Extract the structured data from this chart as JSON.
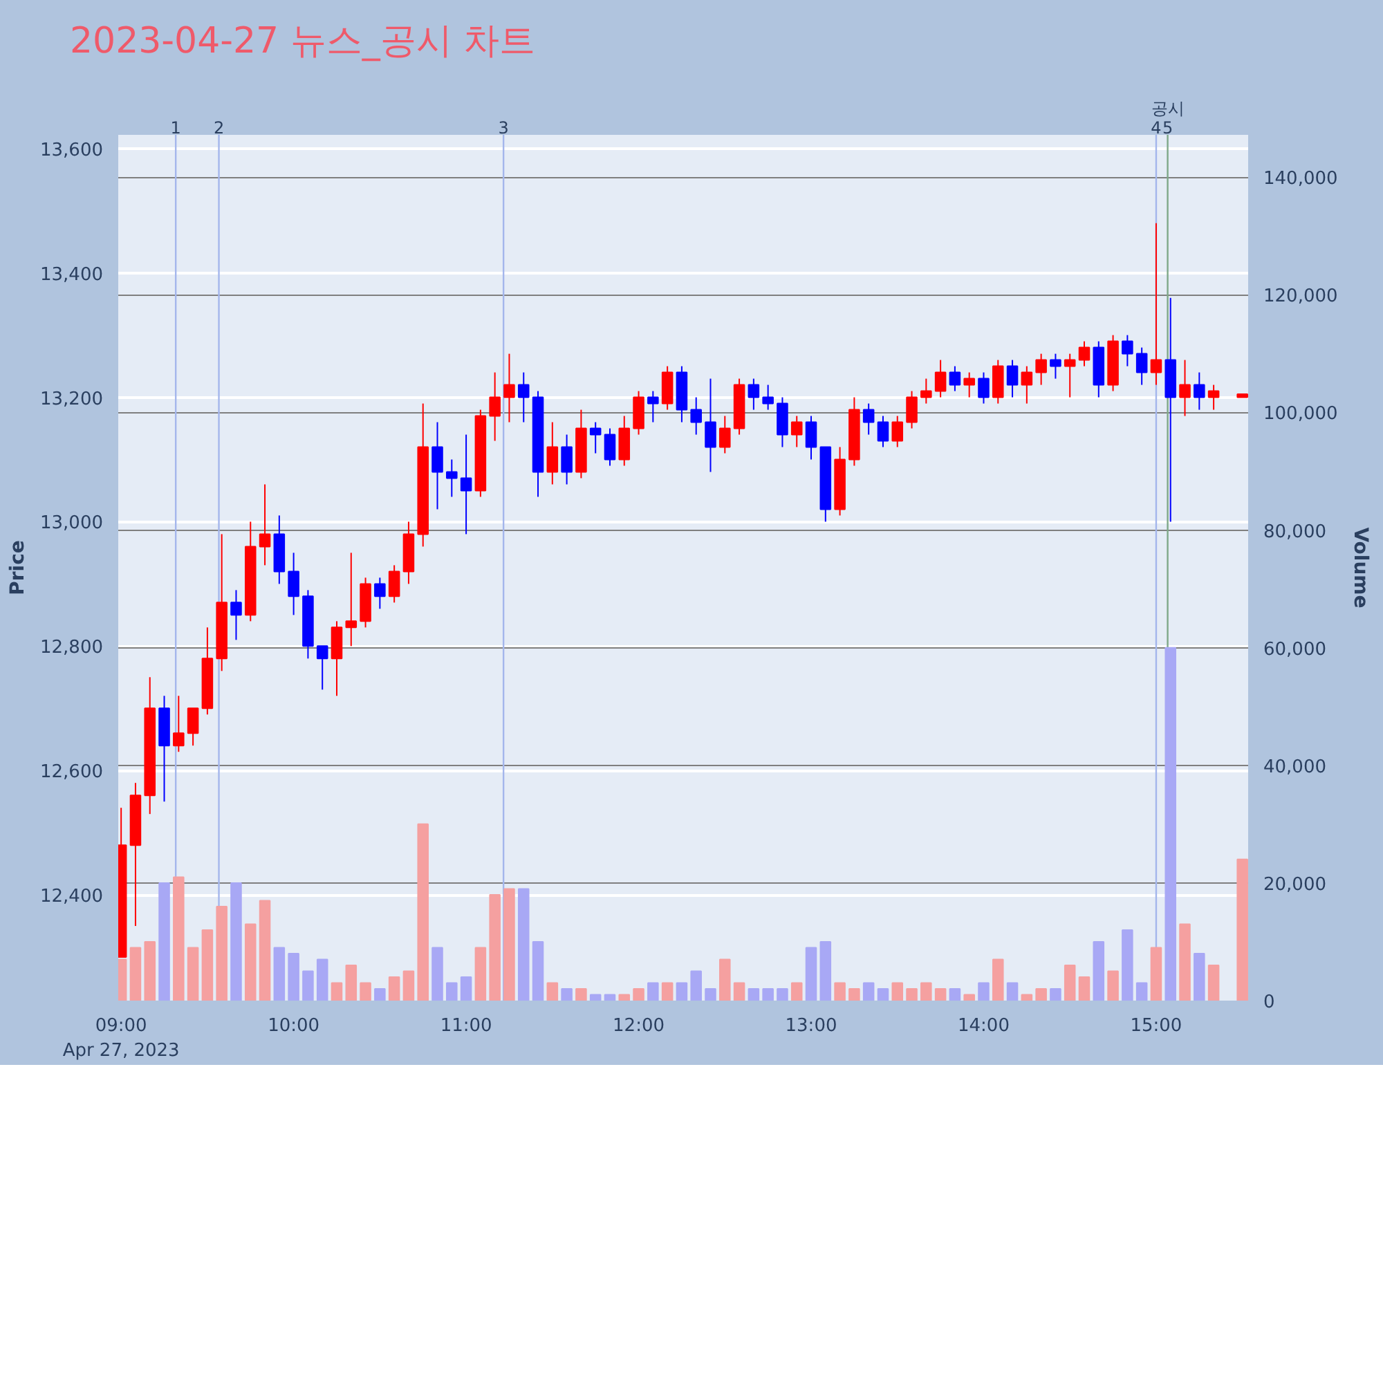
{
  "chart_data": {
    "type": "candlestick",
    "title": "2023-04-27 뉴스_공시 차트",
    "ylabel": "Price",
    "y2label": "Volume",
    "x": [
      "2023-04-27T09:00",
      "2023-04-27T09:05",
      "2023-04-27T09:10",
      "2023-04-27T09:15",
      "2023-04-27T09:20",
      "2023-04-27T09:25",
      "2023-04-27T09:30",
      "2023-04-27T09:35",
      "2023-04-27T09:40",
      "2023-04-27T09:45",
      "2023-04-27T09:50",
      "2023-04-27T09:55",
      "2023-04-27T10:00",
      "2023-04-27T10:05",
      "2023-04-27T10:10",
      "2023-04-27T10:15",
      "2023-04-27T10:20",
      "2023-04-27T10:25",
      "2023-04-27T10:30",
      "2023-04-27T10:35",
      "2023-04-27T10:40",
      "2023-04-27T10:45",
      "2023-04-27T10:50",
      "2023-04-27T10:55",
      "2023-04-27T11:00",
      "2023-04-27T11:05",
      "2023-04-27T11:10",
      "2023-04-27T11:15",
      "2023-04-27T11:20",
      "2023-04-27T11:25",
      "2023-04-27T11:30",
      "2023-04-27T11:35",
      "2023-04-27T11:40",
      "2023-04-27T11:45",
      "2023-04-27T11:50",
      "2023-04-27T11:55",
      "2023-04-27T12:00",
      "2023-04-27T12:05",
      "2023-04-27T12:10",
      "2023-04-27T12:15",
      "2023-04-27T12:20",
      "2023-04-27T12:25",
      "2023-04-27T12:30",
      "2023-04-27T12:35",
      "2023-04-27T12:40",
      "2023-04-27T12:45",
      "2023-04-27T12:50",
      "2023-04-27T12:55",
      "2023-04-27T13:00",
      "2023-04-27T13:05",
      "2023-04-27T13:10",
      "2023-04-27T13:15",
      "2023-04-27T13:20",
      "2023-04-27T13:25",
      "2023-04-27T13:30",
      "2023-04-27T13:35",
      "2023-04-27T13:40",
      "2023-04-27T13:45",
      "2023-04-27T13:50",
      "2023-04-27T13:55",
      "2023-04-27T14:00",
      "2023-04-27T14:05",
      "2023-04-27T14:10",
      "2023-04-27T14:15",
      "2023-04-27T14:20",
      "2023-04-27T14:25",
      "2023-04-27T14:30",
      "2023-04-27T14:35",
      "2023-04-27T14:40",
      "2023-04-27T14:45",
      "2023-04-27T14:50",
      "2023-04-27T14:55",
      "2023-04-27T15:00",
      "2023-04-27T15:05",
      "2023-04-27T15:10",
      "2023-04-27T15:15",
      "2023-04-27T15:20",
      "2023-04-27T15:30"
    ],
    "ohlc": [
      [
        12300,
        12540,
        12300,
        12480
      ],
      [
        12480,
        12580,
        12350,
        12560
      ],
      [
        12560,
        12750,
        12530,
        12700
      ],
      [
        12700,
        12720,
        12550,
        12640
      ],
      [
        12640,
        12720,
        12630,
        12660
      ],
      [
        12660,
        12700,
        12640,
        12700
      ],
      [
        12700,
        12830,
        12690,
        12780
      ],
      [
        12780,
        12980,
        12760,
        12870
      ],
      [
        12870,
        12890,
        12810,
        12850
      ],
      [
        12850,
        13000,
        12840,
        12960
      ],
      [
        12960,
        13060,
        12930,
        12980
      ],
      [
        12980,
        13010,
        12900,
        12920
      ],
      [
        12920,
        12950,
        12850,
        12880
      ],
      [
        12880,
        12890,
        12780,
        12800
      ],
      [
        12800,
        12800,
        12730,
        12780
      ],
      [
        12780,
        12840,
        12720,
        12830
      ],
      [
        12830,
        12950,
        12800,
        12840
      ],
      [
        12840,
        12910,
        12830,
        12900
      ],
      [
        12900,
        12910,
        12860,
        12880
      ],
      [
        12880,
        12930,
        12870,
        12920
      ],
      [
        12920,
        13000,
        12900,
        12980
      ],
      [
        12980,
        13190,
        12960,
        13120
      ],
      [
        13120,
        13160,
        13020,
        13080
      ],
      [
        13080,
        13100,
        13040,
        13070
      ],
      [
        13070,
        13140,
        12980,
        13050
      ],
      [
        13050,
        13180,
        13040,
        13170
      ],
      [
        13170,
        13240,
        13130,
        13200
      ],
      [
        13200,
        13270,
        13160,
        13220
      ],
      [
        13220,
        13240,
        13160,
        13200
      ],
      [
        13200,
        13210,
        13040,
        13080
      ],
      [
        13080,
        13160,
        13060,
        13120
      ],
      [
        13120,
        13140,
        13060,
        13080
      ],
      [
        13080,
        13180,
        13070,
        13150
      ],
      [
        13150,
        13160,
        13110,
        13140
      ],
      [
        13140,
        13150,
        13090,
        13100
      ],
      [
        13100,
        13170,
        13090,
        13150
      ],
      [
        13150,
        13210,
        13140,
        13200
      ],
      [
        13200,
        13210,
        13160,
        13190
      ],
      [
        13190,
        13250,
        13180,
        13240
      ],
      [
        13240,
        13250,
        13160,
        13180
      ],
      [
        13180,
        13200,
        13140,
        13160
      ],
      [
        13160,
        13230,
        13080,
        13120
      ],
      [
        13120,
        13170,
        13110,
        13150
      ],
      [
        13150,
        13230,
        13140,
        13220
      ],
      [
        13220,
        13230,
        13180,
        13200
      ],
      [
        13200,
        13220,
        13180,
        13190
      ],
      [
        13190,
        13200,
        13120,
        13140
      ],
      [
        13140,
        13170,
        13120,
        13160
      ],
      [
        13160,
        13170,
        13100,
        13120
      ],
      [
        13120,
        13120,
        13000,
        13020
      ],
      [
        13020,
        13120,
        13010,
        13100
      ],
      [
        13100,
        13200,
        13090,
        13180
      ],
      [
        13180,
        13190,
        13140,
        13160
      ],
      [
        13160,
        13170,
        13120,
        13130
      ],
      [
        13130,
        13170,
        13120,
        13160
      ],
      [
        13160,
        13210,
        13150,
        13200
      ],
      [
        13200,
        13230,
        13190,
        13210
      ],
      [
        13210,
        13260,
        13200,
        13240
      ],
      [
        13240,
        13250,
        13210,
        13220
      ],
      [
        13220,
        13240,
        13200,
        13230
      ],
      [
        13230,
        13240,
        13190,
        13200
      ],
      [
        13200,
        13260,
        13190,
        13250
      ],
      [
        13250,
        13260,
        13200,
        13220
      ],
      [
        13220,
        13250,
        13190,
        13240
      ],
      [
        13240,
        13270,
        13220,
        13260
      ],
      [
        13260,
        13270,
        13230,
        13250
      ],
      [
        13250,
        13270,
        13200,
        13260
      ],
      [
        13260,
        13290,
        13250,
        13280
      ],
      [
        13280,
        13290,
        13200,
        13220
      ],
      [
        13220,
        13300,
        13210,
        13290
      ],
      [
        13290,
        13300,
        13250,
        13270
      ],
      [
        13270,
        13280,
        13220,
        13240
      ],
      [
        13240,
        13480,
        13220,
        13260
      ],
      [
        13260,
        13360,
        13000,
        13200
      ],
      [
        13200,
        13260,
        13170,
        13220
      ],
      [
        13220,
        13240,
        13180,
        13200
      ],
      [
        13200,
        13220,
        13180,
        13210
      ],
      [
        13200,
        13205,
        13200,
        13205
      ]
    ],
    "colors": [
      "#ff0000",
      "#ff0000",
      "#ff0000",
      "#0000ff",
      "#ff0000",
      "#ff0000",
      "#ff0000",
      "#ff0000",
      "#0000ff",
      "#ff0000",
      "#ff0000",
      "#0000ff",
      "#0000ff",
      "#0000ff",
      "#0000ff",
      "#ff0000",
      "#ff0000",
      "#ff0000",
      "#0000ff",
      "#ff0000",
      "#ff0000",
      "#ff0000",
      "#0000ff",
      "#0000ff",
      "#0000ff",
      "#ff0000",
      "#ff0000",
      "#ff0000",
      "#0000ff",
      "#0000ff",
      "#ff0000",
      "#0000ff",
      "#ff0000",
      "#0000ff",
      "#0000ff",
      "#ff0000",
      "#ff0000",
      "#0000ff",
      "#ff0000",
      "#0000ff",
      "#0000ff",
      "#0000ff",
      "#ff0000",
      "#ff0000",
      "#0000ff",
      "#0000ff",
      "#0000ff",
      "#ff0000",
      "#0000ff",
      "#0000ff",
      "#ff0000",
      "#ff0000",
      "#0000ff",
      "#0000ff",
      "#ff0000",
      "#ff0000",
      "#ff0000",
      "#ff0000",
      "#0000ff",
      "#ff0000",
      "#0000ff",
      "#ff0000",
      "#0000ff",
      "#ff0000",
      "#ff0000",
      "#0000ff",
      "#ff0000",
      "#ff0000",
      "#0000ff",
      "#ff0000",
      "#0000ff",
      "#0000ff",
      "#ff0000",
      "#0000ff",
      "#ff0000",
      "#0000ff",
      "#ff0000",
      "#ff0000"
    ],
    "series": [
      {
        "type": "bar",
        "axis": "y2",
        "values": [
          7000,
          9000,
          10000,
          20000,
          21000,
          9000,
          12000,
          16000,
          20000,
          13000,
          17000,
          9000,
          8000,
          5000,
          7000,
          3000,
          6000,
          3000,
          2000,
          4000,
          5000,
          30000,
          9000,
          3000,
          4000,
          9000,
          18000,
          19000,
          19000,
          10000,
          3000,
          2000,
          2000,
          1000,
          1000,
          1000,
          2000,
          3000,
          3000,
          3000,
          5000,
          2000,
          7000,
          3000,
          2000,
          2000,
          2000,
          3000,
          9000,
          10000,
          3000,
          2000,
          3000,
          2000,
          3000,
          2000,
          3000,
          2000,
          2000,
          1000,
          3000,
          7000,
          3000,
          1000,
          2000,
          2000,
          6000,
          4000,
          10000,
          5000,
          12000,
          3000,
          9000,
          60000,
          13000,
          8000,
          6000,
          24000
        ],
        "colors": [
          "#f5a0a0",
          "#f5a0a0",
          "#f5a0a0",
          "#a8a8f5",
          "#f5a0a0",
          "#f5a0a0",
          "#f5a0a0",
          "#f5a0a0",
          "#a8a8f5",
          "#f5a0a0",
          "#f5a0a0",
          "#a8a8f5",
          "#a8a8f5",
          "#a8a8f5",
          "#a8a8f5",
          "#f5a0a0",
          "#f5a0a0",
          "#f5a0a0",
          "#a8a8f5",
          "#f5a0a0",
          "#f5a0a0",
          "#f5a0a0",
          "#a8a8f5",
          "#a8a8f5",
          "#a8a8f5",
          "#f5a0a0",
          "#f5a0a0",
          "#f5a0a0",
          "#a8a8f5",
          "#a8a8f5",
          "#f5a0a0",
          "#a8a8f5",
          "#f5a0a0",
          "#a8a8f5",
          "#a8a8f5",
          "#f5a0a0",
          "#f5a0a0",
          "#a8a8f5",
          "#f5a0a0",
          "#a8a8f5",
          "#a8a8f5",
          "#a8a8f5",
          "#f5a0a0",
          "#f5a0a0",
          "#a8a8f5",
          "#a8a8f5",
          "#a8a8f5",
          "#f5a0a0",
          "#a8a8f5",
          "#a8a8f5",
          "#f5a0a0",
          "#f5a0a0",
          "#a8a8f5",
          "#a8a8f5",
          "#f5a0a0",
          "#f5a0a0",
          "#f5a0a0",
          "#f5a0a0",
          "#a8a8f5",
          "#f5a0a0",
          "#a8a8f5",
          "#f5a0a0",
          "#a8a8f5",
          "#f5a0a0",
          "#f5a0a0",
          "#a8a8f5",
          "#f5a0a0",
          "#f5a0a0",
          "#a8a8f5",
          "#f5a0a0",
          "#a8a8f5",
          "#a8a8f5",
          "#f5a0a0",
          "#a8a8f5",
          "#f5a0a0",
          "#a8a8f5",
          "#f5a0a0",
          "#f5a0a0"
        ]
      }
    ],
    "xlim": [
      "2023-04-27T08:59",
      "2023-04-27T15:32"
    ],
    "xticks": [
      {
        "value": "2023-04-27T09:00",
        "label": "09:00\nApr 27, 2023"
      },
      {
        "value": "2023-04-27T10:00",
        "label": "10:00"
      },
      {
        "value": "2023-04-27T11:00",
        "label": "11:00"
      },
      {
        "value": "2023-04-27T12:00",
        "label": "12:00"
      },
      {
        "value": "2023-04-27T13:00",
        "label": "13:00"
      },
      {
        "value": "2023-04-27T14:00",
        "label": "14:00"
      },
      {
        "value": "2023-04-27T15:00",
        "label": "15:00"
      }
    ],
    "ylim": [
      12230,
      13622
    ],
    "yticks": [
      {
        "value": 12400,
        "label": "12,400"
      },
      {
        "value": 12600,
        "label": "12,600"
      },
      {
        "value": 12800,
        "label": "12,800"
      },
      {
        "value": 13000,
        "label": "13,000"
      },
      {
        "value": 13200,
        "label": "13,200"
      },
      {
        "value": 13400,
        "label": "13,400"
      },
      {
        "value": 13600,
        "label": "13,600"
      }
    ],
    "y2lim": [
      0,
      147200
    ],
    "y2ticks": [
      0,
      {
        "value": 20000,
        "label": "20,000"
      },
      {
        "value": 40000,
        "label": "40,000"
      },
      {
        "value": 60000,
        "label": "60,000"
      },
      {
        "value": 80000,
        "label": "80,000"
      },
      {
        "value": 100000,
        "label": "100,000"
      },
      {
        "value": 120000,
        "label": "120,000"
      },
      {
        "value": 140000,
        "label": "140,000"
      }
    ],
    "grid": "y",
    "ref_lines": [
      {
        "axis": "x",
        "value": "2023-04-27T09:19",
        "label": "1",
        "color": "#a4b6ec"
      },
      {
        "axis": "x",
        "value": "2023-04-27T09:34",
        "label": "2",
        "color": "#a4b6ec"
      },
      {
        "axis": "x",
        "value": "2023-04-27T11:13",
        "label": "3",
        "color": "#a4b6ec"
      },
      {
        "axis": "x",
        "value": "2023-04-27T15:00",
        "label": "4",
        "color": "#a4b6ec"
      },
      {
        "axis": "x",
        "value": "2023-04-27T15:04",
        "label": "5",
        "color": "#7fa888"
      }
    ],
    "annotations": [
      {
        "text": "공시",
        "x": "2023-04-27T15:04",
        "y": 13622
      }
    ]
  }
}
